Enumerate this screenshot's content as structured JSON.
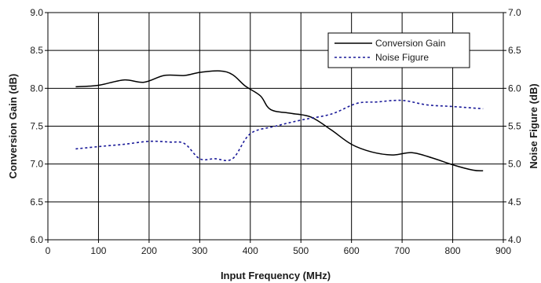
{
  "chart_data": {
    "type": "line",
    "title": "",
    "xlabel": "Input Frequency (MHz)",
    "ylabel": "Conversion Gain (dB)",
    "y2label": "Noise Figure (dB)",
    "xlim": [
      0,
      900
    ],
    "ylim": [
      6.0,
      9.0
    ],
    "y2lim": [
      4.0,
      7.0
    ],
    "x_ticks": [
      "0",
      "100",
      "200",
      "300",
      "400",
      "500",
      "600",
      "700",
      "800",
      "900"
    ],
    "y_ticks": [
      "6.0",
      "6.5",
      "7.0",
      "7.5",
      "8.0",
      "8.5",
      "9.0"
    ],
    "y2_ticks": [
      "4.0",
      "4.5",
      "5.0",
      "5.5",
      "6.0",
      "6.5",
      "7.0"
    ],
    "grid": true,
    "legend_position": "top-right",
    "series": [
      {
        "name": "Conversion Gain",
        "axis": "left",
        "style": "solid",
        "color": "#000000",
        "x": [
          55,
          100,
          150,
          190,
          230,
          270,
          300,
          340,
          365,
          390,
          420,
          440,
          480,
          520,
          560,
          600,
          640,
          680,
          720,
          760,
          800,
          840,
          860
        ],
        "y": [
          8.02,
          8.04,
          8.11,
          8.08,
          8.17,
          8.17,
          8.21,
          8.23,
          8.18,
          8.03,
          7.9,
          7.72,
          7.67,
          7.62,
          7.45,
          7.26,
          7.16,
          7.12,
          7.15,
          7.08,
          6.99,
          6.92,
          6.91
        ]
      },
      {
        "name": "Noise Figure",
        "axis": "right",
        "style": "dashed",
        "color": "#1a1a99",
        "x": [
          55,
          100,
          150,
          200,
          240,
          270,
          300,
          330,
          365,
          400,
          450,
          500,
          560,
          610,
          650,
          700,
          750,
          800,
          860
        ],
        "y": [
          5.2,
          5.23,
          5.26,
          5.3,
          5.29,
          5.27,
          5.07,
          5.07,
          5.07,
          5.4,
          5.5,
          5.58,
          5.66,
          5.8,
          5.82,
          5.84,
          5.78,
          5.76,
          5.73
        ]
      }
    ]
  }
}
